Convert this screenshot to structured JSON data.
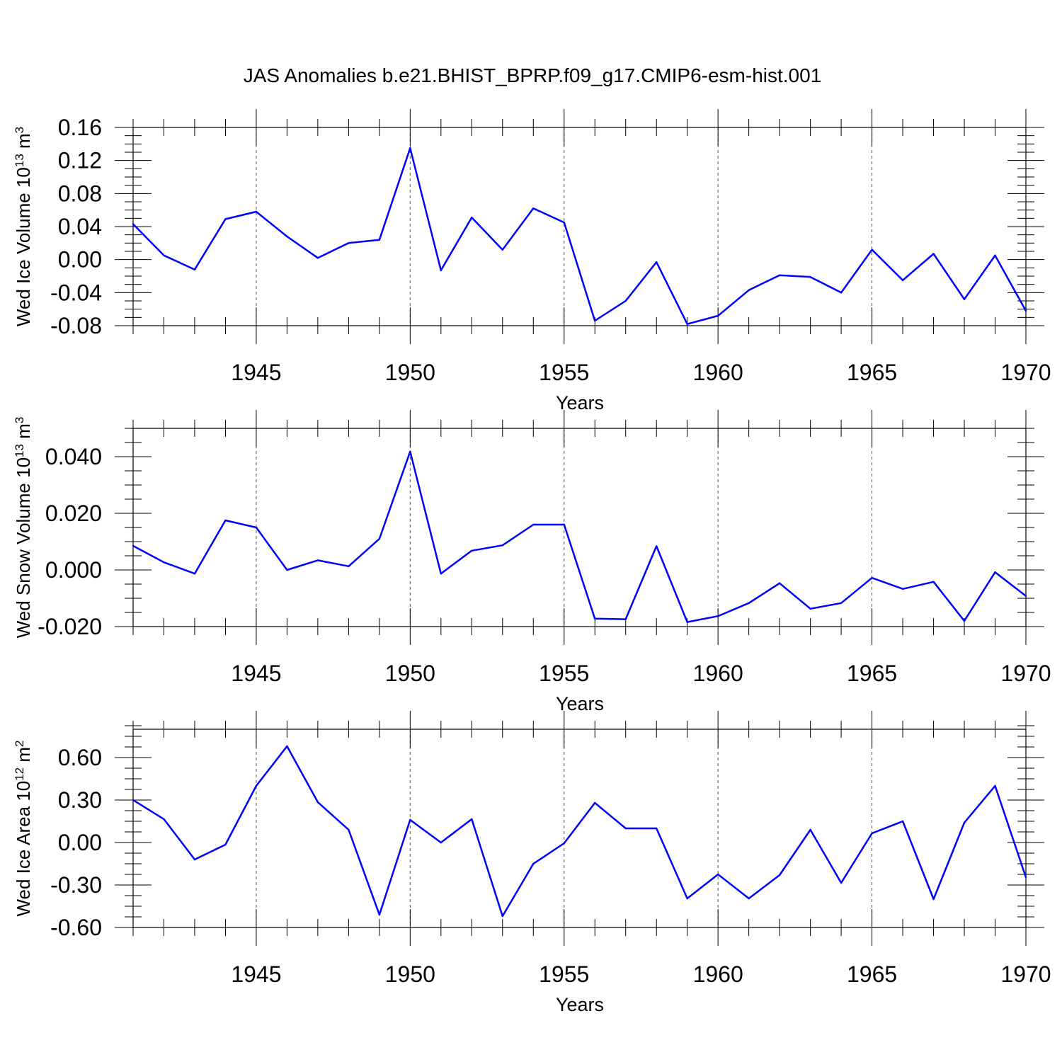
{
  "figure": {
    "title": "JAS Anomalies b.e21.BHIST_BPRP.f09_g17.CMIP6-esm-hist.001"
  },
  "chart_data": [
    {
      "type": "line",
      "ylabel": {
        "main": "Wed Ice Volume 10",
        "exp": "13",
        "unit": " m",
        "unit_exp": "3"
      },
      "xlabel": "Years",
      "xlim": [
        1941,
        1970
      ],
      "ylim": [
        -0.08,
        0.16
      ],
      "yticks": [
        -0.08,
        -0.04,
        0.0,
        0.04,
        0.08,
        0.12,
        0.16
      ],
      "ytick_labels": [
        "-0.08",
        "-0.04",
        "0.00",
        "0.04",
        "0.08",
        "0.12",
        "0.16"
      ],
      "xticks": [
        1945,
        1950,
        1955,
        1960,
        1965,
        1970
      ],
      "xtick_labels": [
        "1945",
        "1950",
        "1955",
        "1960",
        "1965",
        "1970"
      ],
      "grid_x": [
        1945,
        1950,
        1955,
        1960,
        1965
      ],
      "line_color": "#0000ff",
      "x": [
        1941,
        1942,
        1943,
        1944,
        1945,
        1946,
        1947,
        1948,
        1949,
        1950,
        1951,
        1952,
        1953,
        1954,
        1955,
        1956,
        1957,
        1958,
        1959,
        1960,
        1961,
        1962,
        1963,
        1964,
        1965,
        1966,
        1967,
        1968,
        1969,
        1970
      ],
      "y": [
        0.043,
        0.005,
        -0.012,
        0.049,
        0.058,
        0.028,
        0.002,
        0.02,
        0.024,
        0.135,
        -0.013,
        0.051,
        0.012,
        0.062,
        0.045,
        -0.074,
        -0.05,
        -0.003,
        -0.078,
        -0.068,
        -0.037,
        -0.019,
        -0.021,
        -0.04,
        0.012,
        -0.025,
        0.007,
        -0.048,
        0.005,
        -0.062
      ]
    },
    {
      "type": "line",
      "ylabel": {
        "main": "Wed Snow Volume 10",
        "exp": "13",
        "unit": " m",
        "unit_exp": "3"
      },
      "xlabel": "Years",
      "xlim": [
        1941,
        1970
      ],
      "ylim": [
        -0.02,
        0.05
      ],
      "yticks": [
        -0.02,
        0.0,
        0.02,
        0.04
      ],
      "ytick_labels": [
        "-0.020",
        "0.000",
        "0.020",
        "0.040"
      ],
      "xticks": [
        1945,
        1950,
        1955,
        1960,
        1965,
        1970
      ],
      "xtick_labels": [
        "1945",
        "1950",
        "1955",
        "1960",
        "1965",
        "1970"
      ],
      "grid_x": [
        1945,
        1950,
        1955,
        1960,
        1965
      ],
      "line_color": "#0000ff",
      "x": [
        1941,
        1942,
        1943,
        1944,
        1945,
        1946,
        1947,
        1948,
        1949,
        1950,
        1951,
        1952,
        1953,
        1954,
        1955,
        1956,
        1957,
        1958,
        1959,
        1960,
        1961,
        1962,
        1963,
        1964,
        1965,
        1966,
        1967,
        1968,
        1969,
        1970
      ],
      "y": [
        0.0085,
        0.0027,
        -0.0013,
        0.0175,
        0.015,
        0.0,
        0.0034,
        0.0013,
        0.011,
        0.0418,
        -0.0013,
        0.0068,
        0.0087,
        0.016,
        0.016,
        -0.0172,
        -0.0174,
        0.0084,
        -0.0184,
        -0.0163,
        -0.0117,
        -0.0047,
        -0.0137,
        -0.0117,
        -0.0028,
        -0.0067,
        -0.0042,
        -0.018,
        -0.0008,
        -0.0092
      ]
    },
    {
      "type": "line",
      "ylabel": {
        "main": "Wed Ice Area 10",
        "exp": "12",
        "unit": " m",
        "unit_exp": "2"
      },
      "xlabel": "Years",
      "xlim": [
        1941,
        1970
      ],
      "ylim": [
        -0.6,
        0.8
      ],
      "yticks": [
        -0.6,
        -0.3,
        0.0,
        0.3,
        0.6
      ],
      "ytick_labels": [
        "-0.60",
        "-0.30",
        "0.00",
        "0.30",
        "0.60"
      ],
      "xticks": [
        1945,
        1950,
        1955,
        1960,
        1965,
        1970
      ],
      "xtick_labels": [
        "1945",
        "1950",
        "1955",
        "1960",
        "1965",
        "1970"
      ],
      "grid_x": [
        1945,
        1950,
        1955,
        1960,
        1965
      ],
      "line_color": "#0000ff",
      "x": [
        1941,
        1942,
        1943,
        1944,
        1945,
        1946,
        1947,
        1948,
        1949,
        1950,
        1951,
        1952,
        1953,
        1954,
        1955,
        1956,
        1957,
        1958,
        1959,
        1960,
        1961,
        1962,
        1963,
        1964,
        1965,
        1966,
        1967,
        1968,
        1969,
        1970
      ],
      "y": [
        0.3,
        0.165,
        -0.12,
        -0.015,
        0.4,
        0.68,
        0.285,
        0.09,
        -0.51,
        0.16,
        0.0,
        0.165,
        -0.52,
        -0.15,
        -0.005,
        0.28,
        0.1,
        0.1,
        -0.395,
        -0.225,
        -0.395,
        -0.23,
        0.09,
        -0.285,
        0.065,
        0.15,
        -0.4,
        0.14,
        0.4,
        -0.245
      ]
    }
  ]
}
